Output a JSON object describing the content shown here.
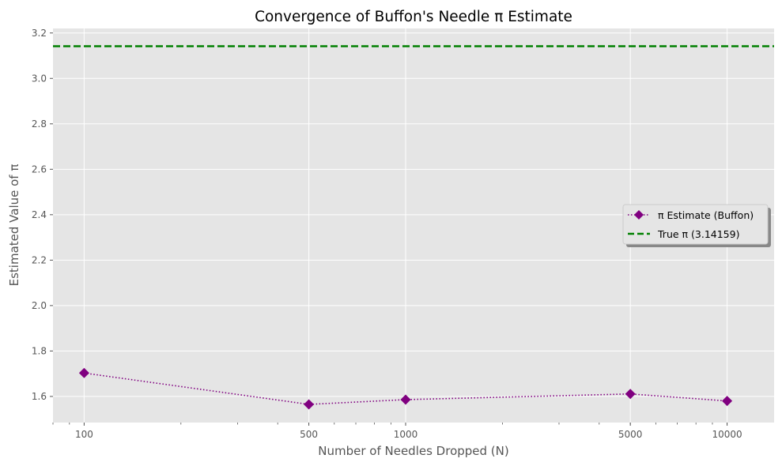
{
  "chart_data": {
    "type": "line",
    "title": "Convergence of Buffon's Needle π Estimate",
    "xlabel": "Number of Needles Dropped (N)",
    "ylabel": "Estimated Value of π",
    "x_scale": "log",
    "xlim": [
      80,
      14000
    ],
    "ylim": [
      1.485,
      3.22
    ],
    "grid": true,
    "legend_position": "center-right",
    "x_ticks": [
      100,
      500,
      1000,
      5000,
      10000
    ],
    "x_tick_labels": [
      "100",
      "500",
      "1000",
      "5000",
      "10000"
    ],
    "y_ticks": [
      1.6,
      1.8,
      2.0,
      2.2,
      2.4,
      2.6,
      2.8,
      3.0,
      3.2
    ],
    "y_tick_labels": [
      "1.6",
      "1.8",
      "2.0",
      "2.2",
      "2.4",
      "2.6",
      "2.8",
      "3.0",
      "3.2"
    ],
    "series": [
      {
        "name": "π Estimate (Buffon)",
        "color": "#800080",
        "marker": "diamond",
        "linestyle": "dotted",
        "x": [
          100,
          500,
          1000,
          5000,
          10000
        ],
        "values": [
          1.703,
          1.565,
          1.586,
          1.611,
          1.58
        ]
      }
    ],
    "reference_lines": [
      {
        "name": "True π (3.14159)",
        "y": 3.14159,
        "color": "#008000",
        "linestyle": "dashed"
      }
    ]
  }
}
